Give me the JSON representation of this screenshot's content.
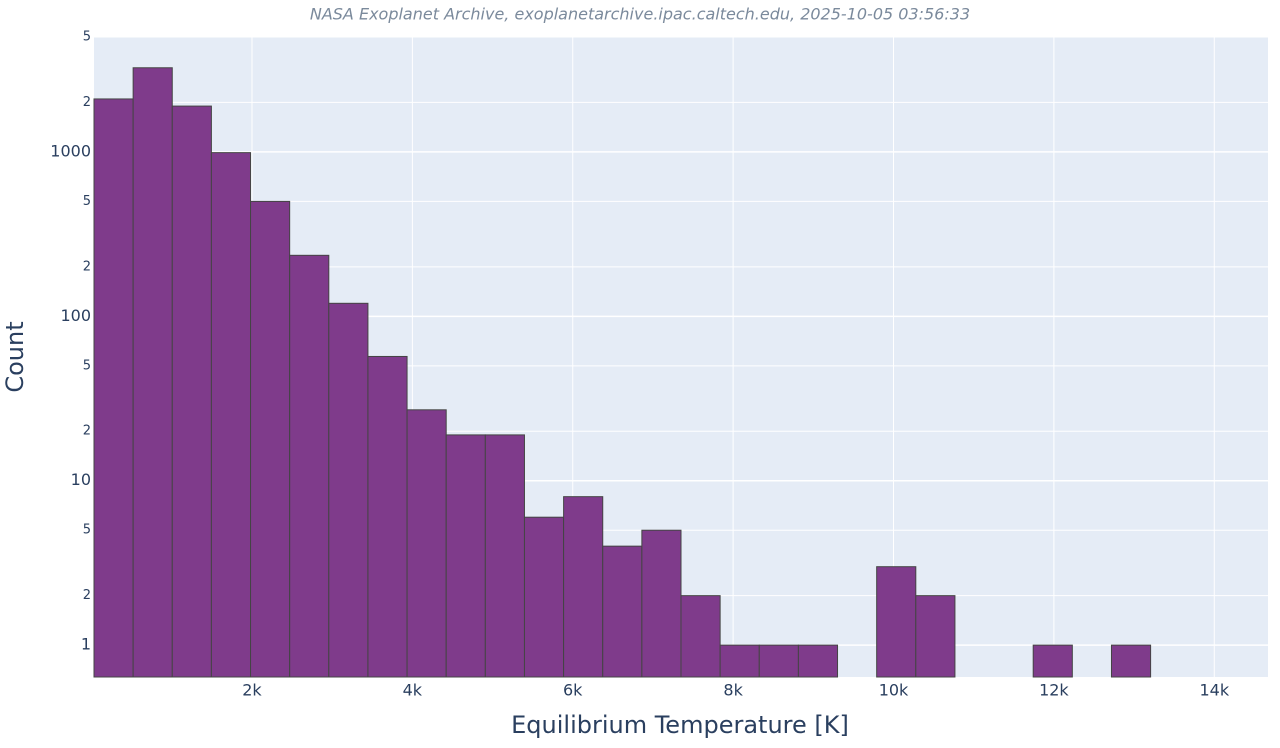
{
  "chart_data": {
    "type": "histogram",
    "title": "NASA Exoplanet Archive, exoplanetarchive.ipac.caltech.edu, 2025-10-05 03:56:33",
    "x_label": "Equilibrium Temperature [K]",
    "y_label": "Count",
    "bins": [
      30,
      518,
      1006,
      1494,
      1982,
      2470,
      2958,
      3446,
      3934,
      4422,
      4910,
      5398,
      5886,
      6374,
      6862,
      7350,
      7838,
      8326,
      8814,
      9302,
      9790,
      10278,
      10766,
      11254,
      11742,
      12230,
      12718,
      13206,
      13694,
      14182,
      14670
    ],
    "counts": [
      2100,
      3250,
      1900,
      990,
      500,
      235,
      120,
      57,
      27,
      19,
      19,
      6,
      8,
      4,
      5,
      2,
      1,
      1,
      1,
      0,
      3,
      2,
      0,
      0,
      1,
      0,
      1,
      0,
      0,
      0
    ],
    "color": "#7f3b8b",
    "edge_color": "#444444",
    "log_y": true,
    "grid": true,
    "xlim": [
      30,
      14670
    ],
    "ylim": [
      0.64,
      5000
    ],
    "xticks": [
      {
        "value": 2000,
        "label": "2k"
      },
      {
        "value": 4000,
        "label": "4k"
      },
      {
        "value": 6000,
        "label": "6k"
      },
      {
        "value": 8000,
        "label": "8k"
      },
      {
        "value": 10000,
        "label": "10k"
      },
      {
        "value": 12000,
        "label": "12k"
      },
      {
        "value": 14000,
        "label": "14k"
      }
    ],
    "yticks": [
      1,
      2,
      5,
      10,
      {
        "value": 20,
        "label": "2"
      },
      {
        "value": 50,
        "label": "5"
      },
      100,
      {
        "value": 200,
        "label": "2"
      },
      {
        "value": 500,
        "label": "5"
      },
      1000,
      {
        "value": 2000,
        "label": "2"
      },
      {
        "value": 5000,
        "label": "5"
      }
    ]
  }
}
